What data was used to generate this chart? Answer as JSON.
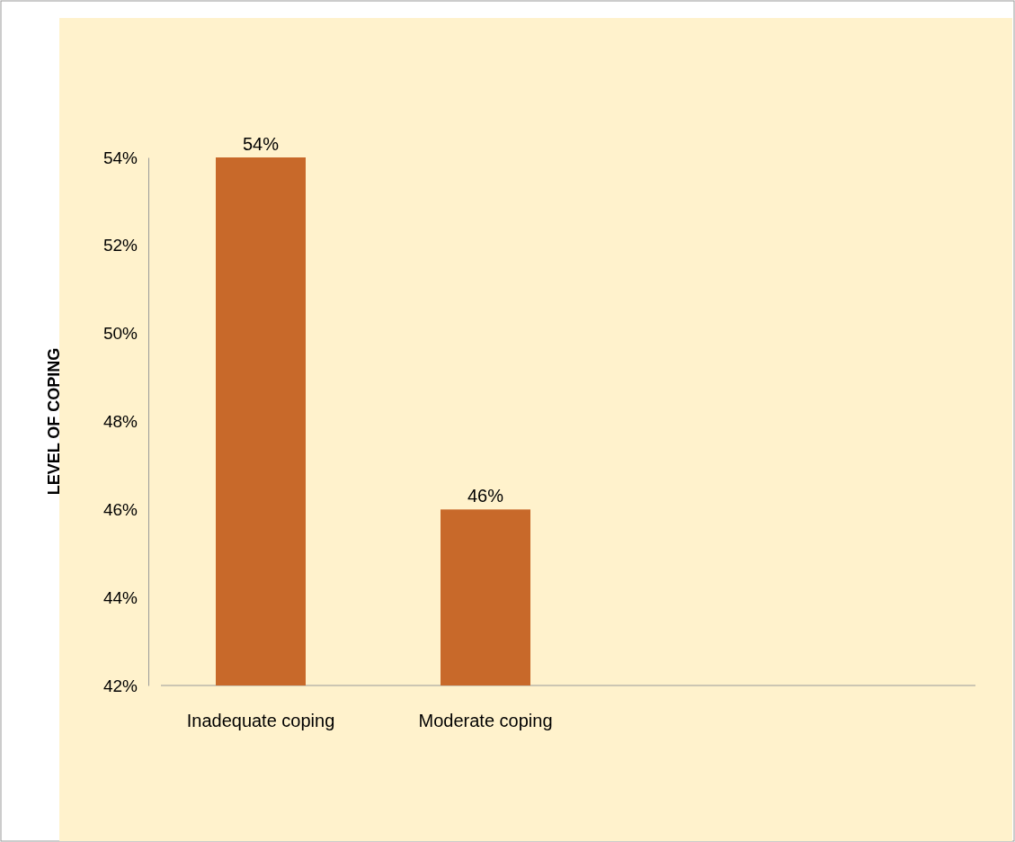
{
  "chart_data": {
    "type": "bar",
    "ylabel": "LEVEL OF COPING",
    "categories": [
      "Inadequate coping",
      "Moderate coping"
    ],
    "values": [
      54,
      46
    ],
    "color": "#c8692a",
    "ylim": [
      42,
      54
    ],
    "yticks": [
      {
        "value": 42,
        "label": "42%"
      },
      {
        "value": 44,
        "label": "44%"
      },
      {
        "value": 46,
        "label": "46%"
      },
      {
        "value": 48,
        "label": "48%"
      },
      {
        "value": 50,
        "label": "50%"
      },
      {
        "value": 52,
        "label": "52%"
      },
      {
        "value": 54,
        "label": "54%"
      }
    ],
    "value_labels": [
      "54%",
      "46%"
    ],
    "grid": false
  }
}
